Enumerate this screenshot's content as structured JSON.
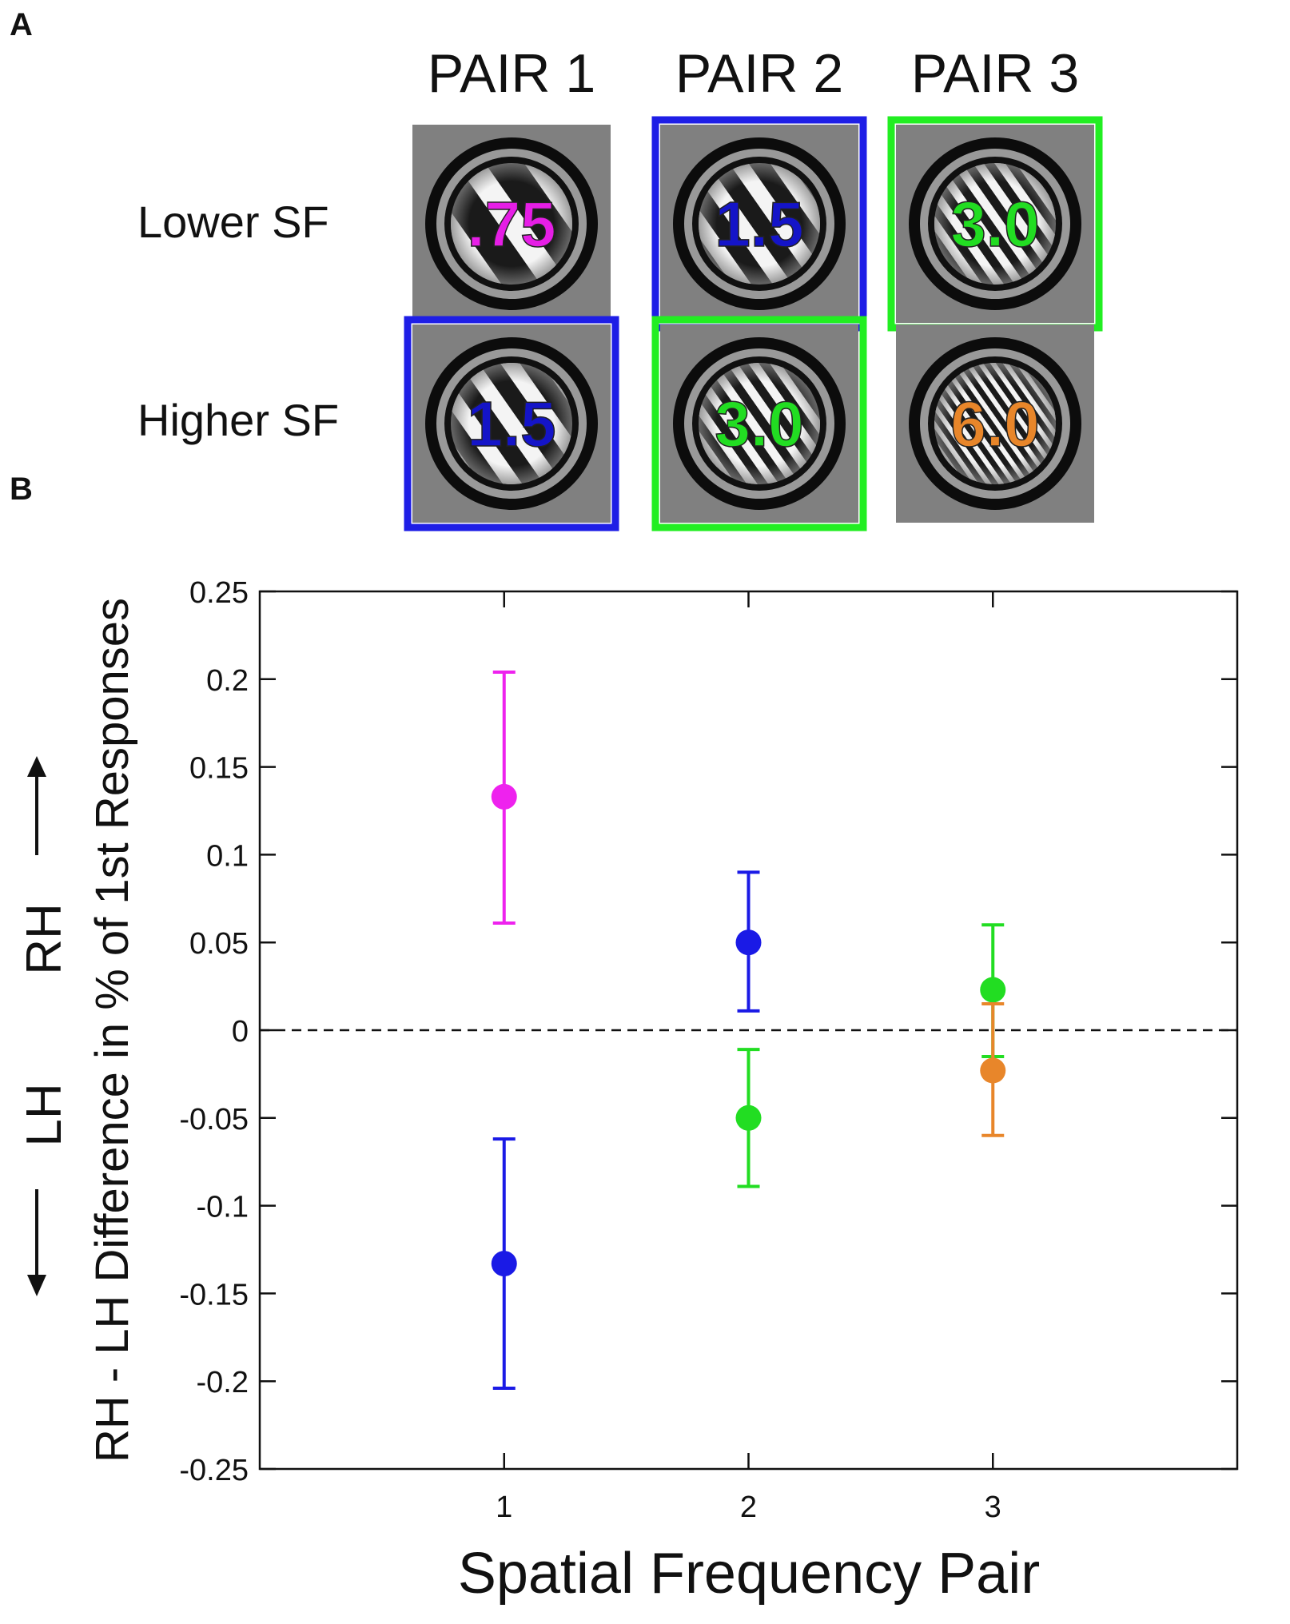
{
  "panel_a": {
    "label": "A",
    "pair_labels": [
      "PAIR 1",
      "PAIR 2",
      "PAIR 3"
    ],
    "row_labels": [
      "Lower SF",
      "Higher SF"
    ],
    "cells": [
      {
        "text": ".75",
        "color": "#e61ee6",
        "frame": null,
        "sf": 0.75
      },
      {
        "text": "1.5",
        "color": "#1414c8",
        "frame": "#1e1ee6",
        "sf": 1.5
      },
      {
        "text": "3.0",
        "color": "#22dd22",
        "frame": "#22ee22",
        "sf": 3.0
      },
      {
        "text": "1.5",
        "color": "#1414c8",
        "frame": "#1e1ee6",
        "sf": 1.5
      },
      {
        "text": "3.0",
        "color": "#22dd22",
        "frame": "#22ee22",
        "sf": 3.0
      },
      {
        "text": "6.0",
        "color": "#e8862a",
        "frame": null,
        "sf": 6.0
      }
    ]
  },
  "panel_b": {
    "label": "B",
    "arrow_up_label": "RH",
    "arrow_down_label": "LH"
  },
  "chart_data": {
    "type": "scatter",
    "title": "",
    "xlabel": "Spatial Frequency Pair",
    "ylabel": "RH - LH Difference in % of 1st Responses",
    "xlim": [
      0,
      4
    ],
    "ylim": [
      -0.25,
      0.25
    ],
    "x_ticks": [
      1,
      2,
      3
    ],
    "y_ticks": [
      0.25,
      0.2,
      0.15,
      0.1,
      0.05,
      0,
      -0.05,
      -0.1,
      -0.15,
      -0.2,
      -0.25
    ],
    "y_tick_labels": [
      "0.25",
      "0.2",
      "0.15",
      "0.1",
      "0.05",
      "0",
      "-0.05",
      "-0.1",
      "-0.15",
      "-0.2",
      "-0.25"
    ],
    "reference_line": {
      "y": 0,
      "style": "dashed"
    },
    "points": [
      {
        "x": 1,
        "y": 0.133,
        "err_low": 0.061,
        "err_high": 0.204,
        "color": "#ee22ee",
        "series": "lower SF (.75)"
      },
      {
        "x": 1,
        "y": -0.133,
        "err_low": -0.204,
        "err_high": -0.062,
        "color": "#1a1ae6",
        "series": "higher SF (1.5)"
      },
      {
        "x": 2,
        "y": 0.05,
        "err_low": 0.011,
        "err_high": 0.09,
        "color": "#1a1ae6",
        "series": "lower SF (1.5)"
      },
      {
        "x": 2,
        "y": -0.05,
        "err_low": -0.089,
        "err_high": -0.011,
        "color": "#22dd22",
        "series": "higher SF (3.0)"
      },
      {
        "x": 3,
        "y": 0.023,
        "err_low": -0.015,
        "err_high": 0.06,
        "color": "#22dd22",
        "series": "lower SF (3.0)"
      },
      {
        "x": 3,
        "y": -0.023,
        "err_low": -0.06,
        "err_high": 0.015,
        "color": "#e8862a",
        "series": "higher SF (6.0)"
      }
    ]
  }
}
